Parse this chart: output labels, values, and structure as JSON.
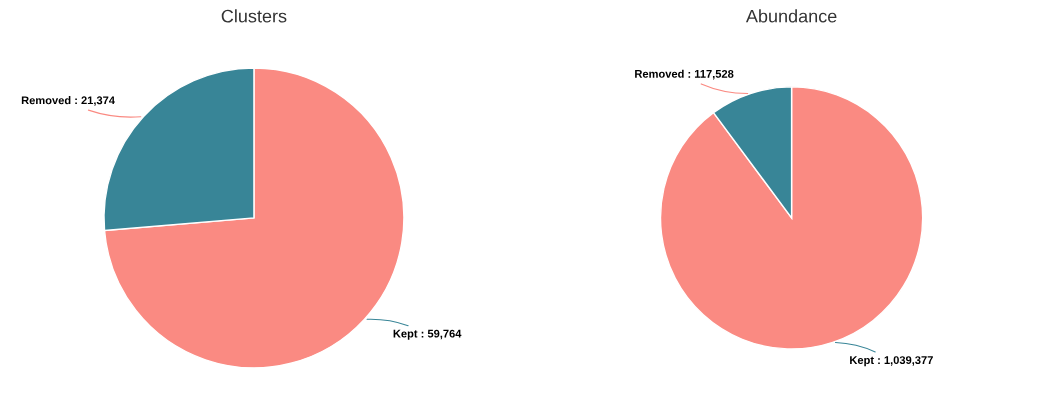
{
  "chart_data": [
    {
      "type": "pie",
      "title": "Clusters",
      "categories": [
        "Kept : 59,764",
        "Removed : 21,374"
      ],
      "values": [
        59764,
        21374
      ],
      "colors": [
        "#fa8a82",
        "#388597"
      ]
    },
    {
      "type": "pie",
      "title": "Abundance",
      "categories": [
        "Kept : 1,039,377",
        "Removed : 117,528"
      ],
      "values": [
        1039377,
        117528
      ],
      "colors": [
        "#fa8a82",
        "#388597"
      ]
    }
  ]
}
